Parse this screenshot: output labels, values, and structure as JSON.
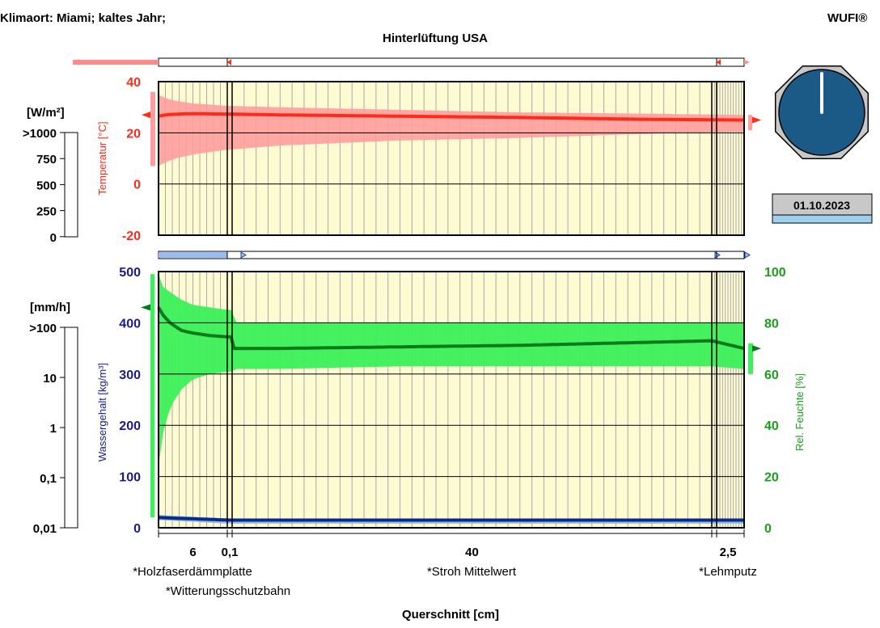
{
  "header": {
    "climate_label": "Klimaort: Miami; kaltes Jahr;",
    "brand": "WUFI®",
    "title": "Hinterlüftung USA"
  },
  "date": "01.10.2023",
  "colors": {
    "temperature": "#ff2a1a",
    "temperature_band": "#ff9d9d",
    "humidity": "#0a7a1a",
    "humidity_band": "#3cf05a",
    "water": "#0a2a8a",
    "water_band": "#8ab6e8",
    "plot_bg": "#fefbd2",
    "clock_face": "#1b5a87",
    "axis_red": "#ff2a1a",
    "axis_blue": "#1a1a8a",
    "axis_green": "#1b9e1b"
  },
  "radiation_scale": {
    "unit": "[W/m²]",
    "ticks": [
      ">1000",
      "750",
      "500",
      "250",
      "0"
    ]
  },
  "rain_scale": {
    "unit": "[mm/h]",
    "ticks": [
      ">100",
      "10",
      "1",
      "0,1",
      "0,01"
    ]
  },
  "x_axis": {
    "label": "Querschnitt [cm]",
    "tick_labels": [
      {
        "text": "6",
        "at": 3
      },
      {
        "text": "0,1",
        "at": 6.05
      },
      {
        "text": "40",
        "at": 26.1
      },
      {
        "text": "2,5",
        "at": 47.35
      }
    ]
  },
  "layers": [
    {
      "name": "*Holzfaserdämmplatte",
      "thickness_cm": 6,
      "start": 0,
      "end": 6
    },
    {
      "name": "*Witterungsschutzbahn",
      "thickness_cm": 0.1,
      "start": 6,
      "end": 6.1
    },
    {
      "name": "*Stroh Mittelwert",
      "thickness_cm": 40,
      "start": 6.1,
      "end": 46.1
    },
    {
      "name": "*Lehmputz",
      "thickness_cm": 2.5,
      "start": 46.1,
      "end": 48.6
    }
  ],
  "chart_data": [
    {
      "type": "line",
      "ylabel": "Temperatur [°C]",
      "ylim": [
        -20,
        40
      ],
      "yticks": [
        -20,
        0,
        20,
        40
      ],
      "grid": true,
      "series": [
        {
          "x": [
            0,
            0.6,
            1.5,
            3,
            6.1,
            10,
            20,
            30,
            40,
            48.6
          ],
          "values": [
            26.5,
            27,
            27.3,
            27.5,
            27.3,
            27,
            26.5,
            26,
            25.3,
            25
          ],
          "band_max": [
            35,
            33.5,
            32.5,
            31.5,
            30.5,
            30,
            29,
            28,
            27.5,
            27
          ],
          "band_min": [
            7,
            8.5,
            10,
            11.5,
            13.5,
            15,
            17,
            18,
            19.5,
            20.5
          ]
        }
      ],
      "boundary_left": 27,
      "boundary_right": 25
    },
    {
      "type": "line",
      "ylabel": "Wassergehalt [kg/m³]",
      "ylabel_right": "Rel. Feuchte [%]",
      "ylim": [
        0,
        500
      ],
      "ylim_right": [
        0,
        100
      ],
      "yticks": [
        0,
        100,
        200,
        300,
        400,
        500
      ],
      "yticks_right": [
        0,
        20,
        40,
        60,
        80,
        100
      ],
      "grid": true,
      "series": [
        {
          "axis": "right",
          "x": [
            0,
            0.4,
            1,
            2,
            3,
            4.5,
            6.1,
            6.15,
            10,
            20,
            30,
            40,
            46.1,
            48.6
          ],
          "values": [
            86,
            83,
            80,
            77,
            76,
            75,
            74.5,
            70,
            70,
            70.6,
            71.2,
            72.3,
            73,
            70
          ],
          "band_max": [
            99,
            94,
            92,
            89,
            87,
            86,
            85,
            80,
            80,
            80,
            80,
            80,
            80,
            80
          ],
          "band_min": [
            24,
            37,
            47,
            54,
            58,
            60,
            61,
            62,
            62,
            63,
            63,
            63,
            63,
            62
          ]
        },
        {
          "axis": "left",
          "x": [
            0,
            6.1,
            48.6
          ],
          "values": [
            20,
            15,
            15
          ],
          "band_max": [
            25,
            18,
            15
          ],
          "band_min": [
            15,
            8,
            8
          ]
        }
      ],
      "boundary_left_rh": 86,
      "boundary_right_rh": 70
    }
  ]
}
